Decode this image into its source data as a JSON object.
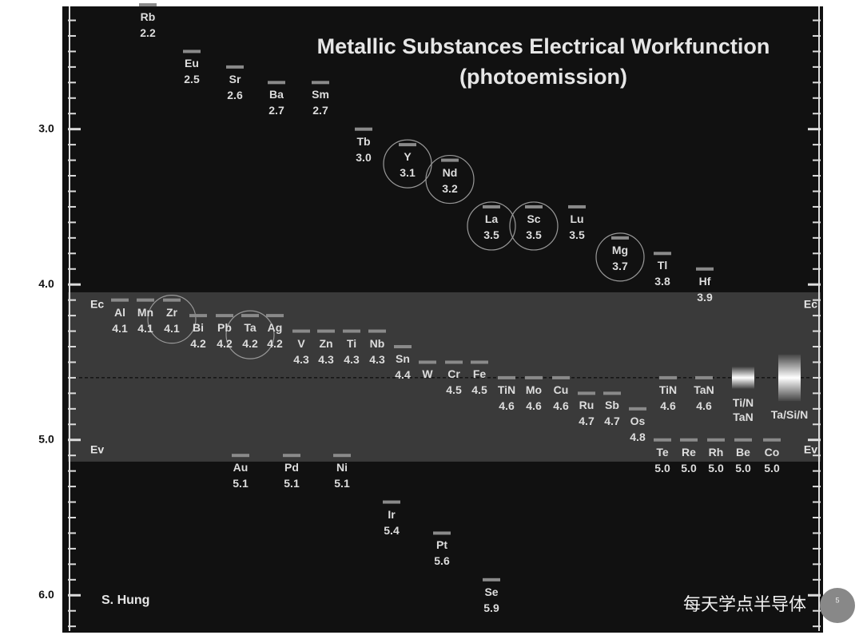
{
  "chart_data": {
    "type": "level",
    "title": "Metallic Substances  Electrical Workfunction",
    "subtitle": "(photoemission)",
    "author": "S. Hung",
    "watermark": "每天学点半导体",
    "slide_number": "5",
    "ylim": [
      2.21,
      6.23
    ],
    "y_inverted": true,
    "yticks": [
      {
        "value": 3,
        "label": "3.0"
      },
      {
        "value": 4,
        "label": "4.0"
      },
      {
        "value": 5,
        "label": "5.0"
      },
      {
        "value": 6,
        "label": "6.0"
      }
    ],
    "minor_yticks": [
      2.3,
      2.4,
      2.5,
      2.6,
      2.7,
      2.8,
      2.9,
      3.1,
      3.2,
      3.3,
      3.4,
      3.5,
      3.6,
      3.7,
      3.8,
      3.9,
      4.1,
      4.2,
      4.3,
      4.4,
      4.5,
      4.6,
      4.7,
      4.8,
      4.9,
      5.1,
      5.2,
      5.3,
      5.4,
      5.5,
      5.6,
      5.7,
      5.8,
      5.9,
      6.1,
      6.2
    ],
    "band": {
      "top": 4.05,
      "bottom": 5.14,
      "midgap": 4.6,
      "top_label": "Ec",
      "bottom_label": "Ev",
      "color": "#3a3a3a"
    },
    "bar_color": "#8a8a8a",
    "label_color": "#dddddd",
    "points": [
      {
        "label": "Rb",
        "value": 2.2
      },
      {
        "label": "Eu",
        "value": 2.5
      },
      {
        "label": "Sr",
        "value": 2.6
      },
      {
        "label": "Ba",
        "value": 2.7
      },
      {
        "label": "Sm",
        "value": 2.7
      },
      {
        "label": "Tb",
        "value": 3.0,
        "value_label": "3.0"
      },
      {
        "label": "Y",
        "value": 3.1,
        "circled": true
      },
      {
        "label": "Nd",
        "value": 3.2,
        "circled": true
      },
      {
        "label": "La",
        "value": 3.5,
        "circled": true
      },
      {
        "label": "Sc",
        "value": 3.5,
        "circled": true
      },
      {
        "label": "Lu",
        "value": 3.5
      },
      {
        "label": "Mg",
        "value": 3.7,
        "circled": true
      },
      {
        "label": "Tl",
        "value": 3.8
      },
      {
        "label": "Hf",
        "value": 3.9
      },
      {
        "label": "Al",
        "value": 4.1
      },
      {
        "label": "Mn",
        "value": 4.1
      },
      {
        "label": "Zr",
        "value": 4.1,
        "circled": true
      },
      {
        "label": "Bi",
        "value": 4.2
      },
      {
        "label": "Pb",
        "value": 4.2
      },
      {
        "label": "Ta",
        "value": 4.2,
        "circled": true
      },
      {
        "label": "Ag",
        "value": 4.2
      },
      {
        "label": "V",
        "value": 4.3
      },
      {
        "label": "Zn",
        "value": 4.3
      },
      {
        "label": "Ti",
        "value": 4.3
      },
      {
        "label": "Nb",
        "value": 4.3
      },
      {
        "label": "Sn",
        "value": 4.4
      },
      {
        "label": "W",
        "value": 4.5,
        "value_shown": false
      },
      {
        "label": "Cr",
        "value": 4.5
      },
      {
        "label": "Fe",
        "value": 4.5
      },
      {
        "label": "TiN",
        "value": 4.6
      },
      {
        "label": "Mo",
        "value": 4.6
      },
      {
        "label": "Cu",
        "value": 4.6
      },
      {
        "label": "Ru",
        "value": 4.7
      },
      {
        "label": "Sb",
        "value": 4.7
      },
      {
        "label": "Os",
        "value": 4.8
      },
      {
        "label": "TiN",
        "value": 4.6
      },
      {
        "label": "TaN",
        "value": 4.6
      },
      {
        "label": "Ti/N\nTaN",
        "value": 4.6,
        "spread": 0.07,
        "value_shown": false
      },
      {
        "label": "Ta/Si/N",
        "value": 4.6,
        "spread": 0.15,
        "value_shown": false
      },
      {
        "label": "Au",
        "value": 5.1
      },
      {
        "label": "Pd",
        "value": 5.1
      },
      {
        "label": "Ni",
        "value": 5.1
      },
      {
        "label": "Ir",
        "value": 5.4
      },
      {
        "label": "Pt",
        "value": 5.6
      },
      {
        "label": "Se",
        "value": 5.9
      },
      {
        "label": "Te",
        "value": 5.0,
        "value_label": "5.0"
      },
      {
        "label": "Re",
        "value": 5.0,
        "value_label": "5.0"
      },
      {
        "label": "Rh",
        "value": 5.0,
        "value_label": "5.0"
      },
      {
        "label": "Be",
        "value": 5.0,
        "value_label": "5.0"
      },
      {
        "label": "Co",
        "value": 5.0,
        "value_label": "5.0"
      }
    ]
  }
}
